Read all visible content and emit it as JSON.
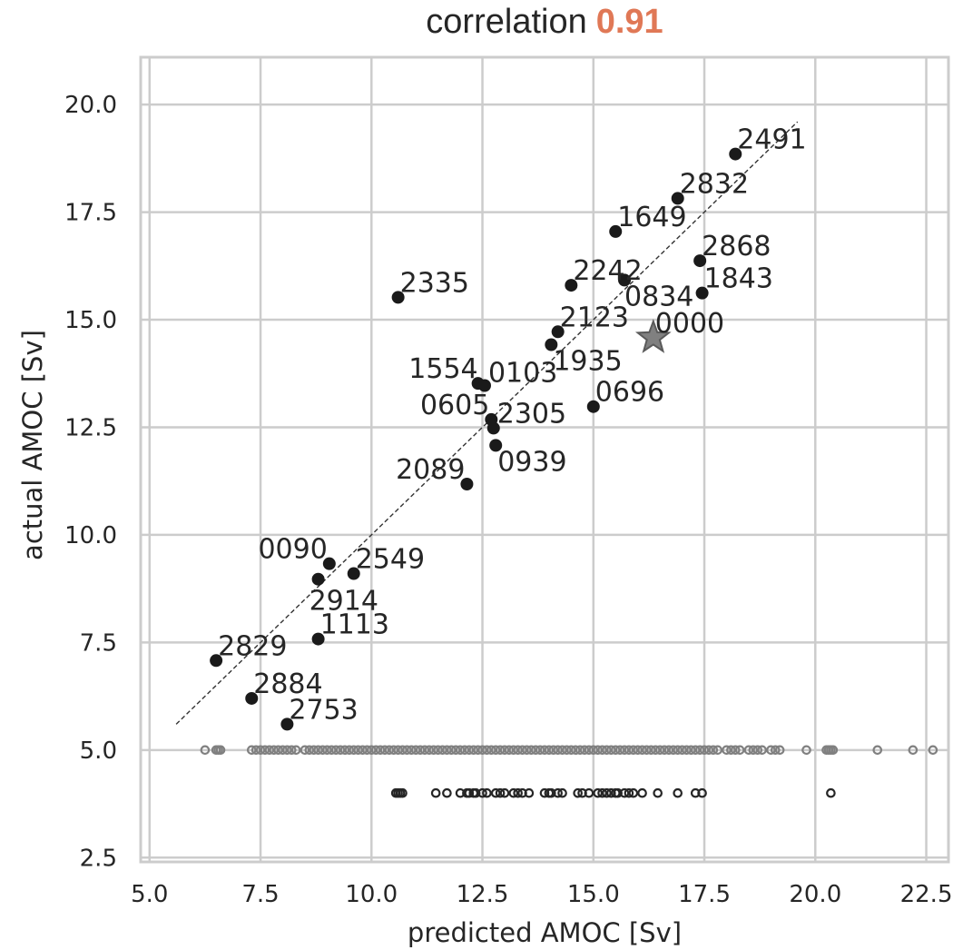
{
  "chart_data": {
    "type": "scatter",
    "title": "correlation",
    "title_value": "0.91",
    "title_value_color": "#E07856",
    "xlabel": "predicted AMOC [Sv]",
    "ylabel": "actual AMOC [Sv]",
    "xlim": [
      4.8,
      23.0
    ],
    "ylim": [
      2.4,
      21.1
    ],
    "xticks": [
      5.0,
      7.5,
      10.0,
      12.5,
      15.0,
      17.5,
      20.0,
      22.5
    ],
    "xtick_labels": [
      "5.0",
      "7.5",
      "10.0",
      "12.5",
      "15.0",
      "17.5",
      "20.0",
      "22.5"
    ],
    "yticks": [
      2.5,
      5.0,
      7.5,
      10.0,
      12.5,
      15.0,
      17.5,
      20.0
    ],
    "ytick_labels": [
      "2.5",
      "5.0",
      "7.5",
      "10.0",
      "12.5",
      "15.0",
      "17.5",
      "20.0"
    ],
    "grid": true,
    "identity_line": {
      "x": [
        5.6,
        19.6
      ],
      "y": [
        5.6,
        19.6
      ],
      "style": "dashed",
      "color": "#333333"
    },
    "labeled_points": [
      {
        "label": "2491",
        "x": 18.2,
        "y": 18.85
      },
      {
        "label": "2832",
        "x": 16.9,
        "y": 17.82
      },
      {
        "label": "1649",
        "x": 15.5,
        "y": 17.05
      },
      {
        "label": "2868",
        "x": 17.4,
        "y": 16.37
      },
      {
        "label": "1843",
        "x": 17.45,
        "y": 15.62
      },
      {
        "label": "0834",
        "x": 15.7,
        "y": 15.92
      },
      {
        "label": "2242",
        "x": 14.5,
        "y": 15.8
      },
      {
        "label": "2335",
        "x": 10.6,
        "y": 15.52
      },
      {
        "label": "2123",
        "x": 14.2,
        "y": 14.72
      },
      {
        "label": "1935",
        "x": 14.05,
        "y": 14.42
      },
      {
        "label": "1554",
        "x": 12.4,
        "y": 13.52
      },
      {
        "label": "0103",
        "x": 12.55,
        "y": 13.47
      },
      {
        "label": "0696",
        "x": 15.0,
        "y": 12.98
      },
      {
        "label": "0605",
        "x": 12.7,
        "y": 12.68
      },
      {
        "label": "2305",
        "x": 12.75,
        "y": 12.48
      },
      {
        "label": "0939",
        "x": 12.8,
        "y": 12.08
      },
      {
        "label": "2089",
        "x": 12.15,
        "y": 11.18
      },
      {
        "label": "0090",
        "x": 9.05,
        "y": 9.33
      },
      {
        "label": "2549",
        "x": 9.6,
        "y": 9.1
      },
      {
        "label": "2914",
        "x": 8.8,
        "y": 8.97
      },
      {
        "label": "1113",
        "x": 8.8,
        "y": 7.58
      },
      {
        "label": "2829",
        "x": 6.5,
        "y": 7.08
      },
      {
        "label": "2884",
        "x": 7.3,
        "y": 6.2
      },
      {
        "label": "2753",
        "x": 8.1,
        "y": 5.6
      }
    ],
    "reference_point": {
      "label": "0000",
      "x": 16.35,
      "y": 14.58,
      "marker": "star",
      "color": "#808080"
    },
    "rug_series": [
      {
        "y": 5.0,
        "color": "#808080",
        "x": [
          6.25,
          6.5,
          6.55,
          6.6,
          7.3,
          7.4,
          7.5,
          7.6,
          7.7,
          7.8,
          7.9,
          8.0,
          8.1,
          8.2,
          8.3,
          8.5,
          8.6,
          8.7,
          8.8,
          8.9,
          9.0,
          9.1,
          9.2,
          9.3,
          9.4,
          9.5,
          9.6,
          9.7,
          9.8,
          9.9,
          10.0,
          10.1,
          10.2,
          10.3,
          10.4,
          10.5,
          10.6,
          10.7,
          10.8,
          10.9,
          11.0,
          11.1,
          11.2,
          11.3,
          11.4,
          11.5,
          11.6,
          11.7,
          11.8,
          11.9,
          12.0,
          12.1,
          12.2,
          12.3,
          12.4,
          12.5,
          12.6,
          12.7,
          12.8,
          12.9,
          13.0,
          13.1,
          13.2,
          13.3,
          13.4,
          13.5,
          13.6,
          13.7,
          13.8,
          13.9,
          14.0,
          14.1,
          14.2,
          14.3,
          14.4,
          14.5,
          14.6,
          14.7,
          14.8,
          14.9,
          15.0,
          15.1,
          15.2,
          15.3,
          15.4,
          15.5,
          15.6,
          15.7,
          15.8,
          15.9,
          16.0,
          16.1,
          16.2,
          16.3,
          16.4,
          16.5,
          16.6,
          16.7,
          16.8,
          16.9,
          17.0,
          17.1,
          17.2,
          17.3,
          17.4,
          17.5,
          17.6,
          17.7,
          17.8,
          18.0,
          18.1,
          18.2,
          18.3,
          18.5,
          18.6,
          18.7,
          18.8,
          19.0,
          19.1,
          19.2,
          19.8,
          20.25,
          20.3,
          20.35,
          20.4,
          21.4,
          22.2,
          22.65
        ]
      },
      {
        "y": 4.0,
        "color": "#262626",
        "x": [
          10.55,
          10.6,
          10.65,
          10.7,
          11.45,
          11.7,
          12.0,
          12.15,
          12.2,
          12.3,
          12.35,
          12.5,
          12.6,
          12.8,
          12.9,
          13.0,
          13.2,
          13.3,
          13.4,
          13.55,
          13.9,
          14.0,
          14.05,
          14.2,
          14.3,
          14.65,
          14.75,
          14.9,
          15.1,
          15.2,
          15.3,
          15.4,
          15.5,
          15.55,
          15.7,
          15.8,
          15.9,
          16.1,
          16.45,
          16.9,
          17.3,
          17.45,
          20.35
        ]
      }
    ]
  }
}
